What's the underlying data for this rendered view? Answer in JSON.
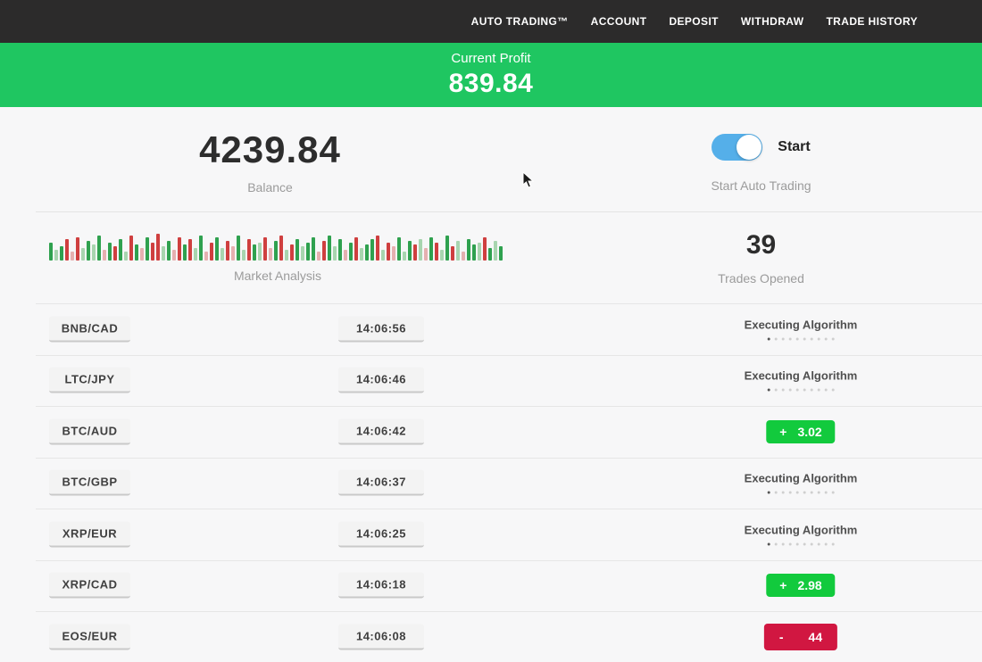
{
  "nav": {
    "items": [
      {
        "label": "AUTO TRADING™"
      },
      {
        "label": "ACCOUNT"
      },
      {
        "label": "DEPOSIT"
      },
      {
        "label": "WITHDRAW"
      },
      {
        "label": "TRADE HISTORY"
      }
    ]
  },
  "banner": {
    "label": "Current Profit",
    "value": "839.84"
  },
  "summary": {
    "balance": {
      "value": "4239.84",
      "label": "Balance"
    },
    "auto_trading": {
      "toggle_label": "Start",
      "label": "Start Auto Trading",
      "toggle_on": true
    },
    "market_analysis": {
      "label": "Market Analysis"
    },
    "trades_opened": {
      "value": "39",
      "label": "Trades Opened"
    }
  },
  "chart_data": {
    "type": "bar",
    "title": "Market Analysis",
    "note": "decorative candlestick-style market activity strip, bottom-aligned bars, heights in px",
    "palette": {
      "g": "#2fa14f",
      "r": "#cf3f3f",
      "lg": "#a8d5af",
      "lr": "#e5b0b0"
    },
    "bars": [
      [
        20,
        "g"
      ],
      [
        12,
        "lg"
      ],
      [
        16,
        "g"
      ],
      [
        24,
        "r"
      ],
      [
        10,
        "lr"
      ],
      [
        26,
        "r"
      ],
      [
        14,
        "lg"
      ],
      [
        22,
        "g"
      ],
      [
        18,
        "lg"
      ],
      [
        28,
        "g"
      ],
      [
        12,
        "lr"
      ],
      [
        20,
        "g"
      ],
      [
        16,
        "r"
      ],
      [
        24,
        "g"
      ],
      [
        10,
        "lg"
      ],
      [
        28,
        "r"
      ],
      [
        18,
        "g"
      ],
      [
        14,
        "lr"
      ],
      [
        26,
        "g"
      ],
      [
        20,
        "r"
      ],
      [
        30,
        "r"
      ],
      [
        16,
        "lg"
      ],
      [
        22,
        "g"
      ],
      [
        12,
        "lr"
      ],
      [
        26,
        "r"
      ],
      [
        18,
        "g"
      ],
      [
        24,
        "r"
      ],
      [
        14,
        "lg"
      ],
      [
        28,
        "g"
      ],
      [
        10,
        "lr"
      ],
      [
        20,
        "r"
      ],
      [
        26,
        "g"
      ],
      [
        14,
        "lg"
      ],
      [
        22,
        "r"
      ],
      [
        16,
        "lr"
      ],
      [
        28,
        "g"
      ],
      [
        12,
        "lg"
      ],
      [
        24,
        "r"
      ],
      [
        18,
        "g"
      ],
      [
        20,
        "lg"
      ],
      [
        26,
        "r"
      ],
      [
        14,
        "lr"
      ],
      [
        22,
        "g"
      ],
      [
        28,
        "r"
      ],
      [
        12,
        "lg"
      ],
      [
        18,
        "r"
      ],
      [
        24,
        "g"
      ],
      [
        16,
        "lg"
      ],
      [
        20,
        "g"
      ],
      [
        26,
        "g"
      ],
      [
        10,
        "lr"
      ],
      [
        22,
        "r"
      ],
      [
        28,
        "g"
      ],
      [
        16,
        "lg"
      ],
      [
        24,
        "g"
      ],
      [
        12,
        "lr"
      ],
      [
        20,
        "g"
      ],
      [
        26,
        "r"
      ],
      [
        14,
        "lg"
      ],
      [
        18,
        "g"
      ],
      [
        24,
        "g"
      ],
      [
        28,
        "r"
      ],
      [
        12,
        "lg"
      ],
      [
        20,
        "r"
      ],
      [
        16,
        "lr"
      ],
      [
        26,
        "g"
      ],
      [
        10,
        "lg"
      ],
      [
        22,
        "g"
      ],
      [
        18,
        "r"
      ],
      [
        24,
        "lg"
      ],
      [
        14,
        "lr"
      ],
      [
        26,
        "g"
      ],
      [
        20,
        "r"
      ],
      [
        12,
        "lg"
      ],
      [
        28,
        "g"
      ],
      [
        16,
        "r"
      ],
      [
        22,
        "lg"
      ],
      [
        10,
        "lr"
      ],
      [
        24,
        "g"
      ],
      [
        18,
        "g"
      ],
      [
        20,
        "lg"
      ],
      [
        26,
        "r"
      ],
      [
        14,
        "g"
      ],
      [
        22,
        "lg"
      ],
      [
        16,
        "g"
      ]
    ]
  },
  "trades": {
    "executing_dots": 10,
    "rows": [
      {
        "pair": "BNB/CAD",
        "time": "14:06:56",
        "status": {
          "type": "executing",
          "label": "Executing Algorithm"
        }
      },
      {
        "pair": "LTC/JPY",
        "time": "14:06:46",
        "status": {
          "type": "executing",
          "label": "Executing Algorithm"
        }
      },
      {
        "pair": "BTC/AUD",
        "time": "14:06:42",
        "status": {
          "type": "profit",
          "sign": "+",
          "amount": "3.02"
        }
      },
      {
        "pair": "BTC/GBP",
        "time": "14:06:37",
        "status": {
          "type": "executing",
          "label": "Executing Algorithm"
        }
      },
      {
        "pair": "XRP/EUR",
        "time": "14:06:25",
        "status": {
          "type": "executing",
          "label": "Executing Algorithm"
        }
      },
      {
        "pair": "XRP/CAD",
        "time": "14:06:18",
        "status": {
          "type": "profit",
          "sign": "+",
          "amount": "2.98"
        }
      },
      {
        "pair": "EOS/EUR",
        "time": "14:06:08",
        "status": {
          "type": "loss",
          "sign": "-",
          "amount": "44"
        }
      }
    ]
  },
  "colors": {
    "nav_bg": "#2c2b2b",
    "banner_green": "#1fc661",
    "profit_green": "#12ca3d",
    "loss_red": "#d11741",
    "toggle_blue": "#55afe9"
  }
}
